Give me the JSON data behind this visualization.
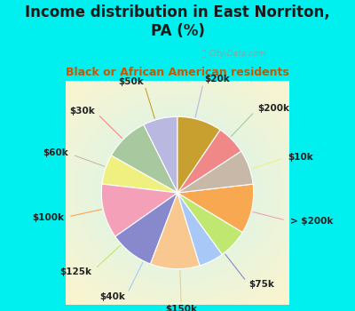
{
  "title": "Income distribution in East Norriton,\nPA (%)",
  "subtitle": "Black or African American residents",
  "title_color": "#1a1a1a",
  "subtitle_color": "#cc5500",
  "bg_cyan": "#00f0f0",
  "bg_chart_outer": "#aaeedd",
  "bg_chart_inner": "#f0faf8",
  "watermark": "ⓘ City-Data.com",
  "labels": [
    "$20k",
    "$200k",
    "$10k",
    "> $200k",
    "$75k",
    "$150k",
    "$40k",
    "$125k",
    "$100k",
    "$60k",
    "$30k",
    "$50k"
  ],
  "values": [
    7,
    9,
    6,
    11,
    9,
    10,
    5,
    6,
    10,
    7,
    6,
    9
  ],
  "colors": [
    "#b8b8e0",
    "#a8c8a0",
    "#f0f080",
    "#f4a0b8",
    "#8888cc",
    "#f8c890",
    "#a8c8f8",
    "#c0e870",
    "#f8a850",
    "#c8b8a8",
    "#f08888",
    "#c8a030"
  ],
  "startangle": 90,
  "label_color": "#222222",
  "label_fontsize": 7.5,
  "title_fontsize": 12,
  "subtitle_fontsize": 9
}
